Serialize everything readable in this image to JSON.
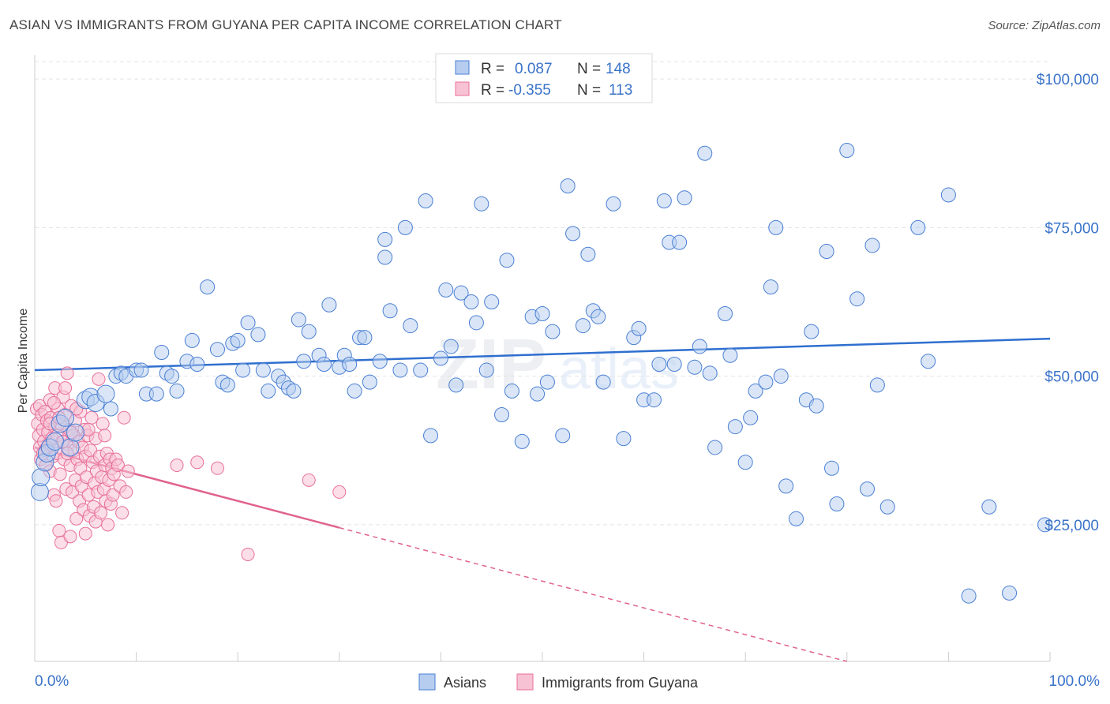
{
  "title": "ASIAN VS IMMIGRANTS FROM GUYANA PER CAPITA INCOME CORRELATION CHART",
  "source": "Source: ZipAtlas.com",
  "watermark": {
    "zip": "ZIP",
    "atlas": "atlas"
  },
  "colors": {
    "blue": "#4a7fd4",
    "blue_fill": "#b6cdf0",
    "blue_line": "#2f6fcf",
    "pink": "#e86f9b",
    "pink_fill": "#f7c2d4",
    "pink_line": "#e0628f",
    "axis_text": "#3a73c9",
    "grid": "#e4e4e4"
  },
  "legend": {
    "rows": [
      {
        "r_label": "R =",
        "r_value": "0.087",
        "n_label": "N =",
        "n_value": "148"
      },
      {
        "r_label": "R =",
        "r_value": "-0.355",
        "n_label": "N =",
        "n_value": "113"
      }
    ]
  },
  "bottom_legend": [
    "Asians",
    "Immigrants from Guyana"
  ],
  "chart_data": {
    "type": "scatter",
    "title": "ASIAN VS IMMIGRANTS FROM GUYANA PER CAPITA INCOME CORRELATION CHART",
    "xlabel": "",
    "ylabel": "Per Capita Income",
    "xlim": [
      0,
      100
    ],
    "ylim": [
      2000,
      104000
    ],
    "x_tick_labels": [
      "0.0%",
      "100.0%"
    ],
    "y_ticks": [
      25000,
      50000,
      75000,
      100000
    ],
    "y_tick_labels": [
      "$25,000",
      "$50,000",
      "$75,000",
      "$100,000"
    ],
    "grid": true,
    "legend_position": "top-center",
    "series": [
      {
        "name": "Asians",
        "r": 0.087,
        "n": 148,
        "trend": {
          "x": [
            0,
            100
          ],
          "y": [
            51000,
            56300
          ]
        },
        "points": [
          [
            0.5,
            30.5
          ],
          [
            0.6,
            33
          ],
          [
            1,
            35.5
          ],
          [
            1.2,
            37
          ],
          [
            1.5,
            38
          ],
          [
            2,
            39
          ],
          [
            2.5,
            42
          ],
          [
            3,
            43
          ],
          [
            3.5,
            38
          ],
          [
            4,
            40.5
          ],
          [
            5,
            46
          ],
          [
            5.5,
            46.5
          ],
          [
            6,
            45.5
          ],
          [
            7,
            47
          ],
          [
            7.5,
            44.5
          ],
          [
            8,
            50
          ],
          [
            8.5,
            50.5
          ],
          [
            9,
            50
          ],
          [
            10,
            51
          ],
          [
            10.5,
            51
          ],
          [
            11,
            47
          ],
          [
            12,
            47
          ],
          [
            12.5,
            54
          ],
          [
            13,
            50.5
          ],
          [
            13.5,
            50
          ],
          [
            14,
            47.5
          ],
          [
            15,
            52.5
          ],
          [
            15.5,
            56
          ],
          [
            16,
            52
          ],
          [
            17,
            65
          ],
          [
            18,
            54.5
          ],
          [
            18.5,
            49
          ],
          [
            19,
            48.5
          ],
          [
            19.5,
            55.5
          ],
          [
            20,
            56
          ],
          [
            20.5,
            51
          ],
          [
            21,
            59
          ],
          [
            22,
            57
          ],
          [
            22.5,
            51
          ],
          [
            23,
            47.5
          ],
          [
            24,
            50
          ],
          [
            24.5,
            49
          ],
          [
            25,
            48
          ],
          [
            25.5,
            47.5
          ],
          [
            26,
            59.5
          ],
          [
            26.5,
            52.5
          ],
          [
            27,
            57.5
          ],
          [
            28,
            53.5
          ],
          [
            28.5,
            52
          ],
          [
            29,
            62
          ],
          [
            30,
            51.5
          ],
          [
            30.5,
            53.5
          ],
          [
            31,
            52
          ],
          [
            31.5,
            47.5
          ],
          [
            32,
            56.5
          ],
          [
            32.5,
            56.5
          ],
          [
            33,
            49
          ],
          [
            34,
            52.5
          ],
          [
            34.5,
            73
          ],
          [
            34.5,
            70
          ],
          [
            35,
            61
          ],
          [
            36,
            51
          ],
          [
            36.5,
            75
          ],
          [
            37,
            58.5
          ],
          [
            38,
            51
          ],
          [
            38.5,
            79.5
          ],
          [
            39,
            40
          ],
          [
            40,
            53
          ],
          [
            40.5,
            64.5
          ],
          [
            41,
            55
          ],
          [
            41.5,
            48.5
          ],
          [
            42,
            64
          ],
          [
            43,
            62.5
          ],
          [
            43.5,
            59
          ],
          [
            44,
            79
          ],
          [
            44.5,
            51
          ],
          [
            45,
            62.5
          ],
          [
            46,
            43.5
          ],
          [
            46.5,
            69.5
          ],
          [
            47,
            47.5
          ],
          [
            48,
            39
          ],
          [
            49,
            60
          ],
          [
            49.5,
            47
          ],
          [
            50,
            60.5
          ],
          [
            50.5,
            49
          ],
          [
            51,
            57.5
          ],
          [
            52,
            40
          ],
          [
            52.5,
            82
          ],
          [
            53,
            74
          ],
          [
            54,
            58.5
          ],
          [
            54.5,
            70.5
          ],
          [
            55,
            61
          ],
          [
            55.5,
            60
          ],
          [
            56,
            49
          ],
          [
            57,
            79
          ],
          [
            58,
            39.5
          ],
          [
            59,
            56.5
          ],
          [
            59.5,
            58
          ],
          [
            60,
            46
          ],
          [
            61,
            46
          ],
          [
            61.5,
            52
          ],
          [
            62,
            79.5
          ],
          [
            62.5,
            72.5
          ],
          [
            63,
            52
          ],
          [
            63.5,
            72.5
          ],
          [
            64,
            80
          ],
          [
            65,
            51.5
          ],
          [
            65.5,
            55
          ],
          [
            66,
            87.5
          ],
          [
            66.5,
            50.5
          ],
          [
            67,
            38
          ],
          [
            68,
            60.5
          ],
          [
            68.5,
            53.5
          ],
          [
            69,
            41.5
          ],
          [
            70,
            35.5
          ],
          [
            70.5,
            43
          ],
          [
            71,
            47.5
          ],
          [
            72,
            49
          ],
          [
            72.5,
            65
          ],
          [
            73,
            75
          ],
          [
            73.5,
            50
          ],
          [
            74,
            31.5
          ],
          [
            75,
            26
          ],
          [
            76,
            46
          ],
          [
            76.5,
            57.5
          ],
          [
            77,
            45
          ],
          [
            78,
            71
          ],
          [
            78.5,
            34.5
          ],
          [
            79,
            28.5
          ],
          [
            80,
            88
          ],
          [
            81,
            63
          ],
          [
            82,
            31
          ],
          [
            82.5,
            72
          ],
          [
            83,
            48.5
          ],
          [
            84,
            28
          ],
          [
            87,
            75
          ],
          [
            88,
            52.5
          ],
          [
            90,
            80.5
          ],
          [
            92,
            13
          ],
          [
            94,
            28
          ],
          [
            96,
            13.5
          ],
          [
            99.5,
            25
          ]
        ]
      },
      {
        "name": "Immigrants from Guyana",
        "r": -0.355,
        "n": 113,
        "trend": {
          "x": [
            0,
            30
          ],
          "y": [
            38000,
            24500
          ]
        },
        "trend_dashed": {
          "x": [
            30,
            100
          ],
          "y": [
            24500,
            -7000
          ]
        },
        "points": [
          [
            0.2,
            44.5
          ],
          [
            0.3,
            42
          ],
          [
            0.4,
            40
          ],
          [
            0.5,
            45
          ],
          [
            0.5,
            38
          ],
          [
            0.6,
            36
          ],
          [
            0.7,
            43.5
          ],
          [
            0.8,
            41
          ],
          [
            0.9,
            39
          ],
          [
            1,
            44
          ],
          [
            1,
            37.5
          ],
          [
            1.1,
            35
          ],
          [
            1.2,
            42.5
          ],
          [
            1.3,
            40.5
          ],
          [
            1.4,
            38.5
          ],
          [
            1.5,
            34
          ],
          [
            1.5,
            46
          ],
          [
            1.6,
            43
          ],
          [
            1.7,
            39.5
          ],
          [
            1.8,
            36.5
          ],
          [
            1.9,
            30
          ],
          [
            2,
            41.5
          ],
          [
            2,
            48
          ],
          [
            2.1,
            29
          ],
          [
            2.2,
            37
          ],
          [
            2.3,
            44.5
          ],
          [
            2.4,
            24
          ],
          [
            2.5,
            42
          ],
          [
            2.5,
            33.5
          ],
          [
            2.6,
            22
          ],
          [
            2.7,
            39
          ],
          [
            2.8,
            46.5
          ],
          [
            2.9,
            36
          ],
          [
            3,
            43.5
          ],
          [
            3,
            48
          ],
          [
            3.1,
            31
          ],
          [
            3.2,
            50.5
          ],
          [
            3.3,
            38.5
          ],
          [
            3.4,
            41
          ],
          [
            3.5,
            35
          ],
          [
            3.5,
            23
          ],
          [
            3.6,
            45
          ],
          [
            3.7,
            30.5
          ],
          [
            3.8,
            40
          ],
          [
            3.9,
            37.5
          ],
          [
            4,
            42.5
          ],
          [
            4,
            32.5
          ],
          [
            4.1,
            26
          ],
          [
            4.2,
            36
          ],
          [
            4.3,
            39
          ],
          [
            4.4,
            29
          ],
          [
            4.5,
            44
          ],
          [
            4.5,
            34.5
          ],
          [
            4.6,
            31.5
          ],
          [
            4.7,
            38
          ],
          [
            4.8,
            27.5
          ],
          [
            4.9,
            41
          ],
          [
            5,
            36.5
          ],
          [
            5,
            23.5
          ],
          [
            5.1,
            33
          ],
          [
            5.2,
            40
          ],
          [
            5.3,
            30
          ],
          [
            5.4,
            26.5
          ],
          [
            5.5,
            37.5
          ],
          [
            5.6,
            43
          ],
          [
            5.7,
            35.5
          ],
          [
            5.8,
            28
          ],
          [
            5.9,
            32
          ],
          [
            6,
            39.5
          ],
          [
            6,
            25.5
          ],
          [
            6.1,
            34
          ],
          [
            6.2,
            30.5
          ],
          [
            6.3,
            49.5
          ],
          [
            6.4,
            36.5
          ],
          [
            6.5,
            27
          ],
          [
            6.6,
            33
          ],
          [
            6.7,
            42
          ],
          [
            6.8,
            31
          ],
          [
            6.9,
            35
          ],
          [
            7,
            29
          ],
          [
            7.1,
            37
          ],
          [
            7.2,
            25
          ],
          [
            7.3,
            32.5
          ],
          [
            7.4,
            36
          ],
          [
            7.5,
            28.5
          ],
          [
            7.6,
            34.5
          ],
          [
            7.7,
            30
          ],
          [
            7.8,
            33.5
          ],
          [
            8,
            36
          ],
          [
            8.2,
            35
          ],
          [
            8.4,
            31.5
          ],
          [
            8.6,
            27
          ],
          [
            8.8,
            43
          ],
          [
            9,
            30.5
          ],
          [
            9.2,
            34
          ],
          [
            14,
            35
          ],
          [
            16,
            35.5
          ],
          [
            18,
            34.5
          ],
          [
            21,
            20
          ],
          [
            27,
            32.5
          ],
          [
            30,
            30.5
          ],
          [
            1.5,
            42
          ],
          [
            2.2,
            40
          ],
          [
            3.2,
            37
          ],
          [
            4.1,
            44.5
          ],
          [
            2.8,
            39
          ],
          [
            1.2,
            38
          ],
          [
            0.8,
            37
          ],
          [
            3.6,
            40.5
          ],
          [
            2.4,
            43
          ],
          [
            5.3,
            41
          ],
          [
            6.9,
            40
          ],
          [
            1.9,
            45.5
          ]
        ]
      }
    ]
  }
}
